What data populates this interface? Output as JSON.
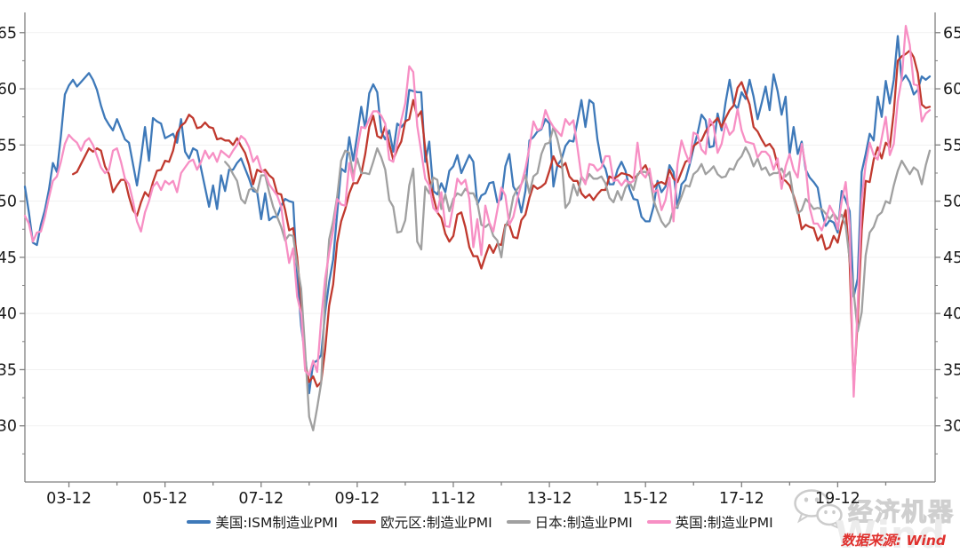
{
  "page": {
    "background": "#ffffff"
  },
  "colors": {
    "axis": "#7f7f7f",
    "tick_label": "#1a1a1a",
    "grid": "#f1f1f1",
    "background": "#ffffff",
    "source_text": "#e0312e",
    "watermark_gray": "#d9d9d9"
  },
  "chart_data": {
    "type": "line",
    "title": "",
    "xlabel": "",
    "ylabel": "",
    "x_start": "2003-01",
    "x_end": "2021-11",
    "x_unit": "month",
    "x_tick_labels": [
      "03-12",
      "05-12",
      "07-12",
      "09-12",
      "11-12",
      "13-12",
      "15-12",
      "17-12",
      "19-12"
    ],
    "x_tick_first_year": 2003,
    "x_minor_tick_every_months": 12,
    "y_ticks": [
      30,
      35,
      40,
      45,
      50,
      55,
      60,
      65
    ],
    "y_minor_step": 2.5,
    "y_axis_range": [
      25.0,
      66.8
    ],
    "grid": "horizontal-faint",
    "dual_y_axis": true,
    "legend_position": "bottom-center",
    "series": [
      {
        "key": "us",
        "name": "美国:ISM制造业PMI",
        "color": "#3e79b9",
        "start": "2003-01",
        "values": [
          51.3,
          49.0,
          46.3,
          46.1,
          47.9,
          49.2,
          51.0,
          53.4,
          52.6,
          55.8,
          59.5,
          60.3,
          60.8,
          60.2,
          60.6,
          61.0,
          61.4,
          60.8,
          59.9,
          58.5,
          57.4,
          56.8,
          56.3,
          57.3,
          56.4,
          55.5,
          55.2,
          53.3,
          51.4,
          53.8,
          56.6,
          53.6,
          57.4,
          57.1,
          56.9,
          55.6,
          55.8,
          56.0,
          55.2,
          57.3,
          54.4,
          53.8,
          54.7,
          54.5,
          52.9,
          51.2,
          49.5,
          51.4,
          49.3,
          52.3,
          50.9,
          52.8,
          52.8,
          53.4,
          53.8,
          52.9,
          52.0,
          50.9,
          50.8,
          48.4,
          50.7,
          48.3,
          48.6,
          48.6,
          49.6,
          50.2,
          50.0,
          49.9,
          43.5,
          38.9,
          36.2,
          32.9,
          35.6,
          35.8,
          36.3,
          40.1,
          42.8,
          44.8,
          48.9,
          52.9,
          52.6,
          55.7,
          53.6,
          55.9,
          58.4,
          56.5,
          59.6,
          60.4,
          59.7,
          56.2,
          55.5,
          56.3,
          54.4,
          56.9,
          56.6,
          57.0,
          59.9,
          59.8,
          59.7,
          59.7,
          53.5,
          55.3,
          50.9,
          50.6,
          51.6,
          50.8,
          52.7,
          53.1,
          54.1,
          52.5,
          53.3,
          54.1,
          53.5,
          49.7,
          50.5,
          50.7,
          51.6,
          51.7,
          49.9,
          50.2,
          53.1,
          54.2,
          51.3,
          50.7,
          49.0,
          50.9,
          55.4,
          55.7,
          56.2,
          56.4,
          57.3,
          56.9,
          51.3,
          53.2,
          53.7,
          54.9,
          55.4,
          55.3,
          57.1,
          59.0,
          56.6,
          59.0,
          58.7,
          55.5,
          53.5,
          52.9,
          51.5,
          51.5,
          52.8,
          53.5,
          52.7,
          51.1,
          50.2,
          50.1,
          48.6,
          48.2,
          48.2,
          49.5,
          51.8,
          50.8,
          51.3,
          53.2,
          52.6,
          49.4,
          51.5,
          51.9,
          53.2,
          54.7,
          56.0,
          57.7,
          57.2,
          54.8,
          54.9,
          57.8,
          56.3,
          58.8,
          60.8,
          58.7,
          58.2,
          59.7,
          59.1,
          60.8,
          59.3,
          57.3,
          58.7,
          60.2,
          58.1,
          61.3,
          59.8,
          57.7,
          59.3,
          54.1,
          56.6,
          54.2,
          55.3,
          52.8,
          52.1,
          51.7,
          51.2,
          49.1,
          47.8,
          48.3,
          48.1,
          47.2,
          50.9,
          50.1,
          49.1,
          41.5,
          43.1,
          52.6,
          54.2,
          56.0,
          55.4,
          59.3,
          57.5,
          60.7,
          58.7,
          60.8,
          64.7,
          60.7,
          61.2,
          60.6,
          59.5,
          59.9,
          61.1,
          60.8,
          61.1
        ]
      },
      {
        "key": "eurozone",
        "name": "欧元区:制造业PMI",
        "color": "#c0392e",
        "start": "2004-01",
        "values": [
          52.4,
          52.6,
          53.3,
          54.0,
          54.7,
          54.4,
          54.7,
          54.5,
          53.1,
          52.4,
          50.8,
          51.4,
          51.9,
          51.9,
          50.4,
          49.2,
          48.7,
          49.9,
          50.8,
          50.4,
          51.7,
          52.7,
          52.8,
          53.6,
          53.5,
          54.5,
          56.1,
          56.7,
          57.0,
          57.7,
          57.4,
          56.5,
          56.6,
          57.0,
          56.6,
          56.5,
          55.5,
          55.6,
          55.4,
          55.4,
          55.0,
          55.6,
          54.9,
          54.3,
          53.2,
          51.5,
          52.8,
          52.6,
          52.8,
          52.3,
          52.0,
          50.7,
          50.6,
          49.2,
          47.4,
          47.6,
          45.0,
          41.1,
          35.6,
          33.9,
          34.4,
          33.5,
          33.9,
          36.8,
          40.7,
          42.6,
          46.3,
          48.2,
          49.3,
          50.7,
          51.6,
          51.6,
          52.4,
          54.2,
          56.6,
          57.6,
          55.8,
          55.6,
          56.7,
          55.1,
          53.7,
          54.6,
          55.3,
          57.1,
          57.3,
          59.0,
          57.5,
          58.0,
          54.6,
          52.0,
          50.4,
          49.0,
          48.5,
          47.1,
          46.4,
          46.9,
          48.8,
          49.0,
          47.7,
          45.9,
          45.1,
          45.1,
          44.0,
          45.1,
          46.1,
          45.4,
          46.2,
          46.1,
          47.9,
          47.9,
          46.8,
          46.7,
          48.3,
          48.8,
          50.3,
          51.4,
          51.1,
          51.3,
          51.6,
          52.7,
          54.0,
          53.2,
          53.0,
          53.4,
          52.2,
          51.8,
          51.8,
          50.7,
          50.3,
          50.6,
          50.1,
          50.6,
          51.0,
          51.0,
          52.2,
          52.0,
          52.2,
          52.5,
          52.4,
          52.3,
          52.0,
          52.3,
          52.8,
          53.2,
          52.3,
          51.2,
          51.6,
          51.7,
          51.5,
          52.8,
          52.0,
          51.7,
          52.6,
          53.5,
          53.7,
          54.9,
          55.2,
          55.4,
          56.2,
          56.7,
          57.0,
          57.4,
          56.6,
          57.4,
          58.1,
          58.5,
          60.1,
          60.6,
          59.6,
          58.6,
          56.6,
          56.2,
          55.5,
          54.9,
          55.1,
          54.6,
          53.2,
          52.0,
          51.8,
          51.4,
          50.5,
          49.3,
          47.5,
          47.9,
          47.7,
          47.6,
          46.5,
          47.0,
          45.7,
          45.9,
          46.9,
          46.3,
          47.9,
          49.2,
          44.5,
          33.4,
          39.4,
          47.4,
          51.8,
          51.7,
          53.7,
          54.8,
          53.8,
          55.2,
          54.8,
          57.9,
          62.5,
          62.9,
          63.1,
          63.4,
          62.8,
          61.4,
          58.6,
          58.3,
          58.4
        ]
      },
      {
        "key": "japan",
        "name": "日本:制造业PMI",
        "color": "#a0a0a0",
        "start": "2007-03",
        "values": [
          53.5,
          53.1,
          52.4,
          51.8,
          50.2,
          49.8,
          51.0,
          51.2,
          50.8,
          52.3,
          52.3,
          50.8,
          49.5,
          48.6,
          47.7,
          46.5,
          47.0,
          46.9,
          44.3,
          42.2,
          36.7,
          30.8,
          29.6,
          31.6,
          33.8,
          41.4,
          46.6,
          48.2,
          50.4,
          53.6,
          54.5,
          54.3,
          52.3,
          53.8,
          52.5,
          52.5,
          52.4,
          53.5,
          54.7,
          53.9,
          52.8,
          50.1,
          49.5,
          47.2,
          47.3,
          48.3,
          51.4,
          52.9,
          46.4,
          45.7,
          51.3,
          50.7,
          52.1,
          51.9,
          49.3,
          50.6,
          49.1,
          50.2,
          50.7,
          50.5,
          51.1,
          50.7,
          50.7,
          49.9,
          47.9,
          47.7,
          48.0,
          46.9,
          46.5,
          45.0,
          47.7,
          48.5,
          50.4,
          51.1,
          51.5,
          52.3,
          50.7,
          52.2,
          52.5,
          54.2,
          55.1,
          55.2,
          56.6,
          55.5,
          53.9,
          49.4,
          49.9,
          51.5,
          50.5,
          52.2,
          51.7,
          52.4,
          52.0,
          52.0,
          52.2,
          51.6,
          50.3,
          49.9,
          50.9,
          50.1,
          51.2,
          51.7,
          51.0,
          52.4,
          52.6,
          52.6,
          52.3,
          50.1,
          49.1,
          48.2,
          47.7,
          48.1,
          49.3,
          49.5,
          50.4,
          51.4,
          51.3,
          52.4,
          52.7,
          53.3,
          52.4,
          52.7,
          53.1,
          52.4,
          52.1,
          52.2,
          52.9,
          52.8,
          53.6,
          54.0,
          54.8,
          54.1,
          53.1,
          53.8,
          52.8,
          53.0,
          52.3,
          52.5,
          52.5,
          52.9,
          52.2,
          52.6,
          50.3,
          48.9,
          49.2,
          50.2,
          49.8,
          49.3,
          49.4,
          49.3,
          48.9,
          48.4,
          48.9,
          48.4,
          48.8,
          47.8,
          44.8,
          41.9,
          38.4,
          40.1,
          45.2,
          47.2,
          47.7,
          48.7,
          49.0,
          50.0,
          49.8,
          51.4,
          52.7,
          53.6,
          53.0,
          52.4,
          53.0,
          52.7,
          51.5,
          53.2,
          54.5
        ]
      },
      {
        "key": "uk",
        "name": "英国:制造业PMI",
        "color": "#f78fc4",
        "start": "2003-01",
        "values": [
          48.7,
          48.0,
          46.4,
          47.2,
          47.3,
          48.6,
          50.3,
          51.8,
          52.2,
          53.5,
          55.1,
          55.9,
          55.5,
          55.2,
          54.5,
          55.3,
          55.6,
          55.0,
          54.0,
          53.0,
          52.5,
          52.8,
          54.5,
          54.7,
          53.5,
          52.0,
          51.5,
          50.0,
          48.2,
          47.3,
          49.0,
          50.0,
          51.3,
          51.7,
          51.0,
          51.8,
          51.5,
          51.8,
          50.8,
          52.5,
          53.0,
          53.5,
          53.7,
          52.8,
          53.5,
          54.5,
          53.8,
          54.3,
          53.5,
          54.5,
          54.2,
          53.9,
          54.5,
          55.0,
          55.8,
          55.5,
          54.8,
          53.5,
          54.0,
          52.8,
          52.5,
          51.5,
          51.0,
          50.5,
          49.5,
          46.8,
          44.5,
          45.8,
          41.5,
          40.0,
          34.9,
          34.5,
          35.8,
          34.8,
          39.5,
          43.1,
          45.4,
          47.4,
          50.2,
          49.7,
          49.6,
          53.4,
          51.8,
          54.6,
          56.6,
          56.5,
          57.3,
          58.0,
          58.0,
          57.6,
          56.9,
          53.7,
          53.5,
          55.2,
          57.2,
          58.7,
          62.0,
          61.5,
          56.7,
          54.4,
          52.0,
          51.4,
          49.4,
          49.0,
          50.8,
          47.8,
          47.7,
          49.7,
          52.0,
          51.5,
          51.9,
          50.2,
          45.9,
          48.4,
          45.2,
          49.6,
          48.1,
          47.3,
          49.2,
          51.2,
          50.5,
          47.9,
          48.6,
          50.2,
          51.5,
          52.9,
          54.8,
          57.1,
          56.3,
          56.5,
          58.1,
          57.2,
          56.6,
          56.2,
          55.8,
          57.3,
          56.8,
          57.2,
          54.8,
          52.2,
          51.5,
          53.3,
          53.2,
          52.7,
          53.0,
          54.0,
          54.0,
          51.8,
          51.9,
          51.4,
          51.9,
          51.6,
          51.8,
          55.2,
          52.5,
          52.1,
          52.9,
          50.8,
          51.0,
          49.2,
          50.1,
          52.1,
          48.2,
          53.3,
          55.4,
          54.3,
          53.4,
          56.1,
          55.9,
          54.6,
          54.2,
          57.3,
          56.7,
          54.3,
          55.1,
          56.9,
          55.9,
          56.3,
          58.2,
          56.3,
          55.3,
          55.2,
          55.1,
          53.9,
          54.4,
          54.4,
          54.0,
          52.8,
          53.8,
          51.1,
          53.1,
          54.2,
          52.8,
          52.1,
          55.1,
          53.1,
          49.4,
          48.0,
          48.0,
          47.4,
          48.3,
          49.6,
          48.9,
          47.5,
          50.0,
          51.7,
          47.8,
          32.6,
          40.7,
          50.1,
          53.3,
          55.2,
          54.1,
          53.7,
          55.6,
          57.5,
          54.1,
          55.1,
          58.9,
          60.9,
          65.6,
          63.9,
          60.4,
          60.3,
          57.1,
          57.8,
          58.1
        ]
      }
    ]
  },
  "watermark": {
    "brand_text": "经济机器",
    "ghost_text": "Wind",
    "icon": "wechat-icon"
  },
  "footer": {
    "source_label": "数据来源: Wind"
  }
}
